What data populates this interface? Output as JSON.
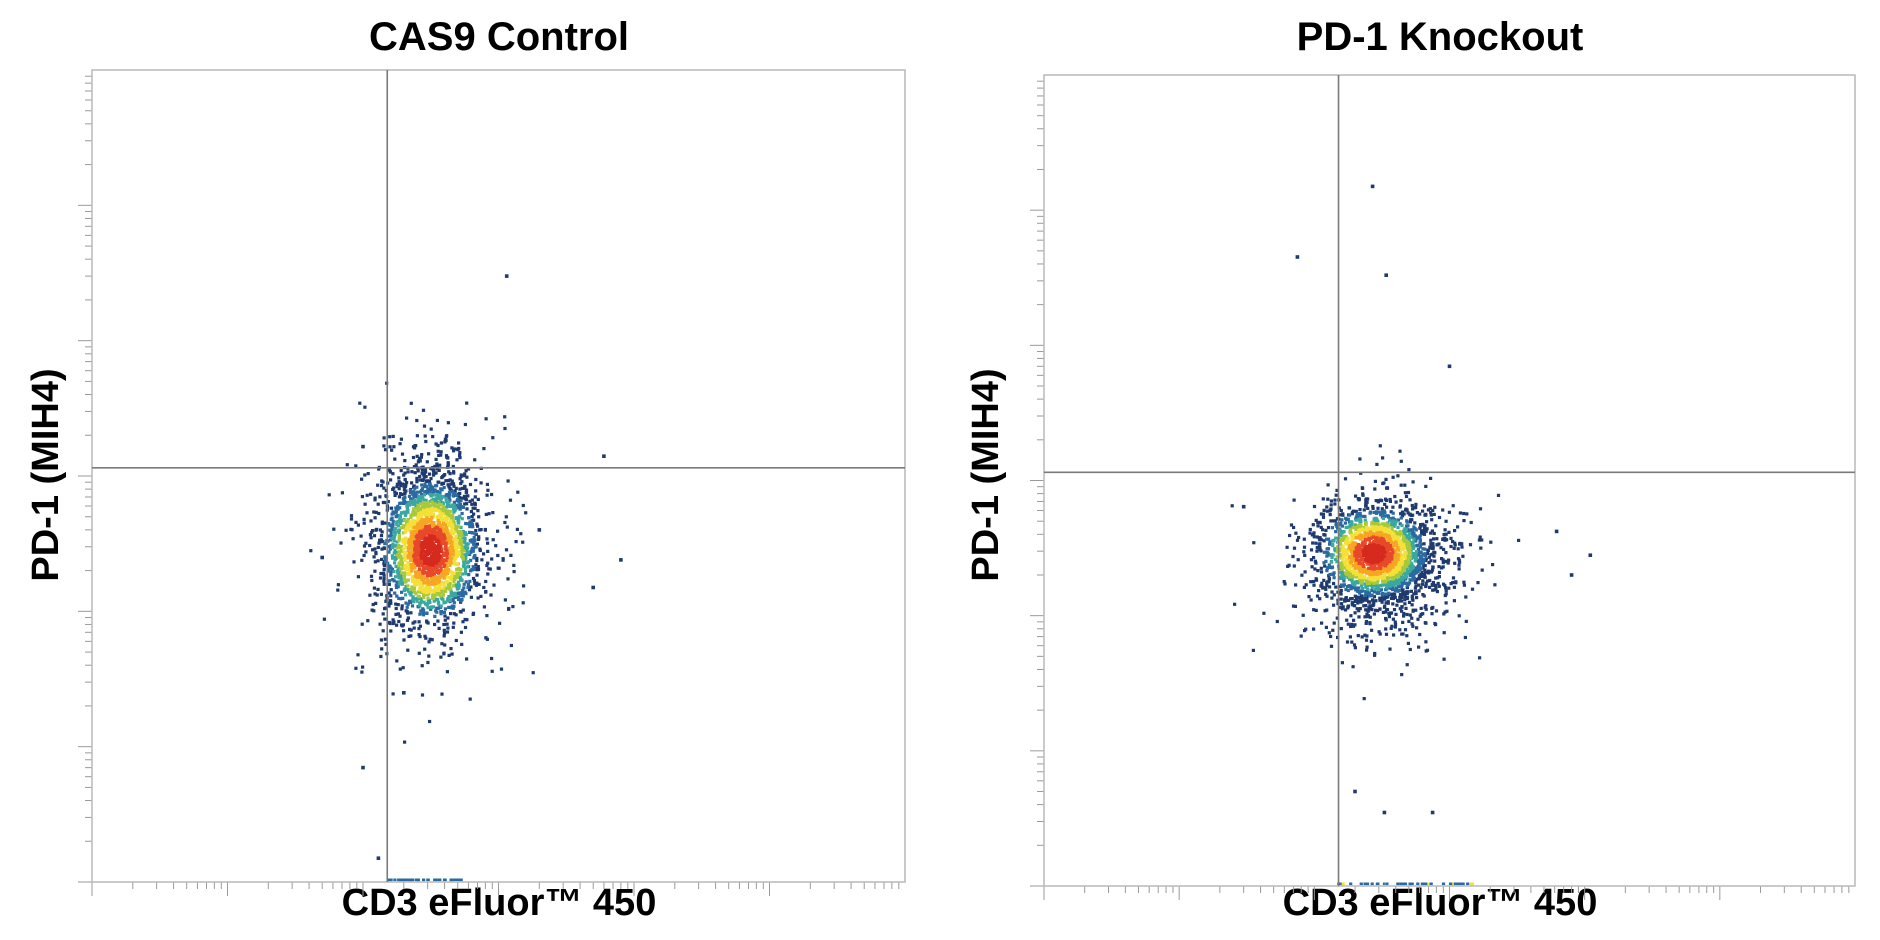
{
  "chart_data": [
    {
      "type": "scatter",
      "title": "CAS9 Control",
      "xlabel": "CD3 eFluor™ 450",
      "ylabel": "PD-1 (MIH4)",
      "xscale": "log",
      "yscale": "log",
      "xlim": [
        1,
        1000000
      ],
      "ylim": [
        1,
        1000000
      ],
      "x_gate": 151,
      "y_gate": 1150,
      "population": {
        "center": [
          315,
          280
        ],
        "spread_log": [
          0.17,
          0.25
        ],
        "count_shown": 2600
      },
      "outliers": [
        [
          100,
          1650
        ],
        [
          50,
          250
        ],
        [
          2000,
          400
        ],
        [
          5000,
          150
        ],
        [
          8000,
          240
        ],
        [
          1150,
          30000
        ],
        [
          6000,
          1400
        ],
        [
          100,
          7
        ],
        [
          130,
          1.5
        ],
        [
          200,
          25
        ]
      ],
      "colormap": [
        "#1e3a6e",
        "#2b6aa0",
        "#3aa8a0",
        "#a8c93a",
        "#f5e03a",
        "#f5a623",
        "#e8492b",
        "#d62a1e"
      ]
    },
    {
      "type": "scatter",
      "title": "PD-1 Knockout",
      "xlabel": "CD3 eFluor™ 450",
      "ylabel": "PD-1 (MIH4)",
      "xscale": "log",
      "yscale": "log",
      "xlim": [
        1,
        1000000
      ],
      "ylim": [
        1,
        1000000
      ],
      "x_gate": 151,
      "y_gate": 1150,
      "population": {
        "center": [
          275,
          290
        ],
        "spread_log": [
          0.19,
          0.16
        ],
        "count_shown": 2400
      },
      "outliers": [
        [
          30,
          640
        ],
        [
          270,
          150000
        ],
        [
          75,
          45000
        ],
        [
          340,
          33000
        ],
        [
          6200,
          420
        ],
        [
          11000,
          280
        ],
        [
          8000,
          200
        ],
        [
          200,
          5
        ],
        [
          330,
          3.5
        ],
        [
          750,
          3.5
        ],
        [
          1000,
          7000
        ]
      ],
      "colormap": [
        "#1e3a6e",
        "#2b6aa0",
        "#3aa8a0",
        "#a8c93a",
        "#f5e03a",
        "#f5a623",
        "#e8492b",
        "#d62a1e"
      ]
    }
  ]
}
